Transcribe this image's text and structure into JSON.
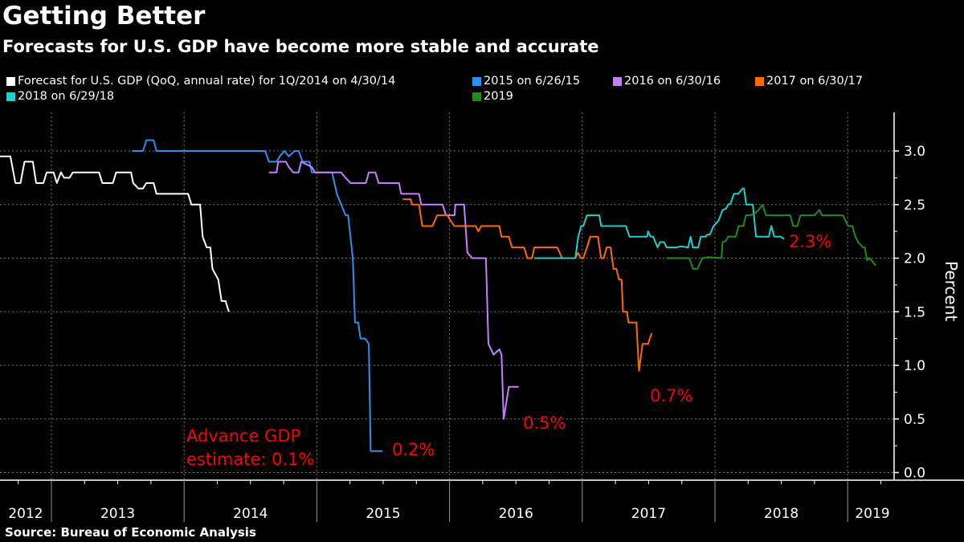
{
  "chart_data": {
    "type": "line",
    "title": "Getting Better",
    "subtitle": "Forecasts for U.S. GDP have become more stable and accurate",
    "ylabel": "Percent",
    "ylim": [
      0,
      3.3
    ],
    "yticks": [
      "0.0",
      "0.5",
      "1.0",
      "1.5",
      "2.0",
      "2.5",
      "3.0"
    ],
    "xticks": [
      "2012",
      "2013",
      "2014",
      "2015",
      "2016",
      "2017",
      "2018",
      "2019"
    ],
    "grid": true,
    "legend_position": "top",
    "source": "Source: Bureau of Economic Analysis",
    "annotations": {
      "advance_line1": "Advance GDP",
      "advance_line2": "estimate: 0.1%",
      "a2015": "0.2%",
      "a2016": "0.5%",
      "a2017": "0.7%",
      "a2018": "2.3%"
    },
    "annotation_color": "#ff0000",
    "series": [
      {
        "name": "Forecast for U.S. GDP (QoQ, annual rate) for 1Q/2014 on 4/30/14",
        "color": "#ffffff",
        "points": [
          [
            "2012-08-10",
            2.95
          ],
          [
            "2012-09-09",
            2.95
          ],
          [
            "2012-09-23",
            2.7
          ],
          [
            "2012-10-07",
            2.7
          ],
          [
            "2012-10-18",
            2.9
          ],
          [
            "2012-11-10",
            2.9
          ],
          [
            "2012-11-19",
            2.7
          ],
          [
            "2012-12-09",
            2.7
          ],
          [
            "2012-12-18",
            2.8
          ],
          [
            "2013-01-07",
            2.8
          ],
          [
            "2013-01-16",
            2.7
          ],
          [
            "2013-01-27",
            2.8
          ],
          [
            "2013-02-05",
            2.75
          ],
          [
            "2013-02-20",
            2.75
          ],
          [
            "2013-03-01",
            2.8
          ],
          [
            "2013-05-12",
            2.8
          ],
          [
            "2013-05-21",
            2.7
          ],
          [
            "2013-06-19",
            2.7
          ],
          [
            "2013-06-28",
            2.8
          ],
          [
            "2013-08-08",
            2.8
          ],
          [
            "2013-08-14",
            2.7
          ],
          [
            "2013-08-28",
            2.65
          ],
          [
            "2013-09-10",
            2.65
          ],
          [
            "2013-09-19",
            2.7
          ],
          [
            "2013-10-09",
            2.7
          ],
          [
            "2013-10-17",
            2.6
          ],
          [
            "2014-01-12",
            2.6
          ],
          [
            "2014-01-21",
            2.5
          ],
          [
            "2014-02-14",
            2.5
          ],
          [
            "2014-02-21",
            2.2
          ],
          [
            "2014-03-04",
            2.1
          ],
          [
            "2014-03-14",
            2.1
          ],
          [
            "2014-03-20",
            1.9
          ],
          [
            "2014-04-05",
            1.8
          ],
          [
            "2014-04-14",
            1.6
          ],
          [
            "2014-04-25",
            1.6
          ],
          [
            "2014-05-04",
            1.5
          ]
        ]
      },
      {
        "name": "2015 on 6/26/15",
        "color": "#2d8ff0",
        "points": [
          [
            "2013-08-11",
            3.0
          ],
          [
            "2013-09-10",
            3.0
          ],
          [
            "2013-09-19",
            3.1
          ],
          [
            "2013-10-09",
            3.1
          ],
          [
            "2013-10-17",
            3.0
          ],
          [
            "2014-08-12",
            3.0
          ],
          [
            "2014-08-22",
            2.9
          ],
          [
            "2014-09-12",
            2.9
          ],
          [
            "2014-09-21",
            2.95
          ],
          [
            "2014-10-04",
            3.0
          ],
          [
            "2014-10-16",
            2.95
          ],
          [
            "2014-11-01",
            3.0
          ],
          [
            "2014-11-12",
            3.0
          ],
          [
            "2014-11-23",
            2.9
          ],
          [
            "2014-12-12",
            2.9
          ],
          [
            "2014-12-18",
            2.8
          ],
          [
            "2015-02-12",
            2.8
          ],
          [
            "2015-02-25",
            2.6
          ],
          [
            "2015-03-09",
            2.5
          ],
          [
            "2015-03-21",
            2.4
          ],
          [
            "2015-03-28",
            2.4
          ],
          [
            "2015-04-10",
            2.0
          ],
          [
            "2015-04-16",
            1.4
          ],
          [
            "2015-04-25",
            1.4
          ],
          [
            "2015-05-01",
            1.25
          ],
          [
            "2015-05-14",
            1.25
          ],
          [
            "2015-05-24",
            1.2
          ],
          [
            "2015-05-29",
            0.2
          ],
          [
            "2015-07-01",
            0.2
          ]
        ]
      },
      {
        "name": "2016 on 6/30/16",
        "color": "#c77dff",
        "points": [
          [
            "2014-08-22",
            2.8
          ],
          [
            "2014-09-12",
            2.8
          ],
          [
            "2014-09-17",
            2.9
          ],
          [
            "2014-10-08",
            2.9
          ],
          [
            "2014-10-16",
            2.85
          ],
          [
            "2014-10-28",
            2.8
          ],
          [
            "2014-11-12",
            2.8
          ],
          [
            "2014-11-19",
            2.9
          ],
          [
            "2014-12-18",
            2.85
          ],
          [
            "2014-12-27",
            2.8
          ],
          [
            "2015-03-09",
            2.8
          ],
          [
            "2015-03-21",
            2.75
          ],
          [
            "2015-04-04",
            2.7
          ],
          [
            "2015-05-16",
            2.7
          ],
          [
            "2015-05-24",
            2.8
          ],
          [
            "2015-06-11",
            2.8
          ],
          [
            "2015-06-20",
            2.7
          ],
          [
            "2015-08-15",
            2.7
          ],
          [
            "2015-08-21",
            2.6
          ],
          [
            "2015-10-09",
            2.6
          ],
          [
            "2015-10-15",
            2.5
          ],
          [
            "2015-12-13",
            2.5
          ],
          [
            "2015-12-22",
            2.4
          ],
          [
            "2016-01-15",
            2.4
          ],
          [
            "2016-01-17",
            2.5
          ],
          [
            "2016-02-10",
            2.5
          ],
          [
            "2016-02-19",
            2.05
          ],
          [
            "2016-03-04",
            2.0
          ],
          [
            "2016-04-10",
            2.0
          ],
          [
            "2016-04-17",
            1.2
          ],
          [
            "2016-05-01",
            1.1
          ],
          [
            "2016-05-17",
            1.15
          ],
          [
            "2016-05-23",
            1.1
          ],
          [
            "2016-05-29",
            0.5
          ],
          [
            "2016-06-12",
            0.8
          ],
          [
            "2016-07-09",
            0.8
          ]
        ]
      },
      {
        "name": "2017 on 6/30/17",
        "color": "#ff6a00",
        "points": [
          [
            "2015-08-25",
            2.55
          ],
          [
            "2015-09-16",
            2.55
          ],
          [
            "2015-09-20",
            2.5
          ],
          [
            "2015-10-09",
            2.5
          ],
          [
            "2015-10-18",
            2.3
          ],
          [
            "2015-11-15",
            2.3
          ],
          [
            "2015-11-28",
            2.4
          ],
          [
            "2015-12-26",
            2.4
          ],
          [
            "2016-01-04",
            2.35
          ],
          [
            "2016-01-14",
            2.3
          ],
          [
            "2016-03-13",
            2.3
          ],
          [
            "2016-03-20",
            2.25
          ],
          [
            "2016-03-28",
            2.3
          ],
          [
            "2016-05-17",
            2.3
          ],
          [
            "2016-05-23",
            2.2
          ],
          [
            "2016-06-12",
            2.2
          ],
          [
            "2016-06-21",
            2.1
          ],
          [
            "2016-07-24",
            2.1
          ],
          [
            "2016-08-02",
            2.0
          ],
          [
            "2016-08-15",
            2.0
          ],
          [
            "2016-08-21",
            2.1
          ],
          [
            "2016-10-23",
            2.1
          ],
          [
            "2016-11-06",
            2.0
          ],
          [
            "2016-12-12",
            2.0
          ],
          [
            "2016-12-19",
            2.05
          ],
          [
            "2016-12-28",
            2.0
          ],
          [
            "2017-01-04",
            2.0
          ],
          [
            "2017-01-14",
            2.1
          ],
          [
            "2017-01-23",
            2.2
          ],
          [
            "2017-02-13",
            2.2
          ],
          [
            "2017-02-22",
            2.0
          ],
          [
            "2017-03-01",
            2.0
          ],
          [
            "2017-03-09",
            2.1
          ],
          [
            "2017-03-20",
            2.1
          ],
          [
            "2017-03-28",
            1.9
          ],
          [
            "2017-04-05",
            1.9
          ],
          [
            "2017-04-12",
            1.8
          ],
          [
            "2017-04-19",
            1.8
          ],
          [
            "2017-04-23",
            1.5
          ],
          [
            "2017-05-04",
            1.5
          ],
          [
            "2017-05-08",
            1.4
          ],
          [
            "2017-05-30",
            1.4
          ],
          [
            "2017-06-06",
            0.95
          ],
          [
            "2017-06-16",
            1.2
          ],
          [
            "2017-07-01",
            1.2
          ],
          [
            "2017-07-11",
            1.3
          ]
        ]
      },
      {
        "name": "2018 on 6/29/18",
        "color": "#1ad1d1",
        "points": [
          [
            "2016-08-21",
            2.0
          ],
          [
            "2016-12-12",
            2.0
          ],
          [
            "2016-12-20",
            2.2
          ],
          [
            "2016-12-28",
            2.3
          ],
          [
            "2017-01-04",
            2.3
          ],
          [
            "2017-01-14",
            2.4
          ],
          [
            "2017-02-17",
            2.4
          ],
          [
            "2017-02-22",
            2.3
          ],
          [
            "2017-05-01",
            2.3
          ],
          [
            "2017-05-11",
            2.2
          ],
          [
            "2017-06-28",
            2.2
          ],
          [
            "2017-07-01",
            2.25
          ],
          [
            "2017-07-08",
            2.2
          ],
          [
            "2017-07-15",
            2.2
          ],
          [
            "2017-07-27",
            2.1
          ],
          [
            "2017-08-03",
            2.15
          ],
          [
            "2017-08-14",
            2.15
          ],
          [
            "2017-08-21",
            2.1
          ],
          [
            "2017-09-19",
            2.1
          ],
          [
            "2017-09-28",
            2.11
          ],
          [
            "2017-10-19",
            2.1
          ],
          [
            "2017-10-26",
            2.2
          ],
          [
            "2017-11-01",
            2.1
          ],
          [
            "2017-11-16",
            2.1
          ],
          [
            "2017-11-23",
            2.2
          ],
          [
            "2017-12-06",
            2.2
          ],
          [
            "2017-12-11",
            2.22
          ],
          [
            "2017-12-18",
            2.22
          ],
          [
            "2017-12-28",
            2.3
          ],
          [
            "2018-01-11",
            2.35
          ],
          [
            "2018-01-22",
            2.45
          ],
          [
            "2018-01-31",
            2.46
          ],
          [
            "2018-02-06",
            2.5
          ],
          [
            "2018-02-13",
            2.51
          ],
          [
            "2018-02-22",
            2.6
          ],
          [
            "2018-03-06",
            2.6
          ],
          [
            "2018-03-18",
            2.65
          ],
          [
            "2018-03-22",
            2.65
          ],
          [
            "2018-03-28",
            2.5
          ],
          [
            "2018-04-15",
            2.5
          ],
          [
            "2018-04-24",
            2.2
          ],
          [
            "2018-05-29",
            2.2
          ],
          [
            "2018-06-05",
            2.3
          ],
          [
            "2018-06-13",
            2.2
          ],
          [
            "2018-07-01",
            2.2
          ],
          [
            "2018-07-10",
            2.18
          ]
        ]
      },
      {
        "name": "2019",
        "color": "#1e8c1e",
        "points": [
          [
            "2017-08-21",
            2.0
          ],
          [
            "2017-10-22",
            2.0
          ],
          [
            "2017-11-02",
            1.9
          ],
          [
            "2017-11-14",
            1.9
          ],
          [
            "2017-11-27",
            2.0
          ],
          [
            "2017-12-14",
            2.01
          ],
          [
            "2018-01-19",
            2.0
          ],
          [
            "2018-01-22",
            2.15
          ],
          [
            "2018-01-31",
            2.16
          ],
          [
            "2018-02-06",
            2.2
          ],
          [
            "2018-02-27",
            2.2
          ],
          [
            "2018-03-07",
            2.3
          ],
          [
            "2018-03-20",
            2.3
          ],
          [
            "2018-03-27",
            2.4
          ],
          [
            "2018-04-08",
            2.4
          ],
          [
            "2018-04-22",
            2.42
          ],
          [
            "2018-05-01",
            2.45
          ],
          [
            "2018-05-12",
            2.5
          ],
          [
            "2018-05-21",
            2.4
          ],
          [
            "2018-07-27",
            2.4
          ],
          [
            "2018-08-04",
            2.3
          ],
          [
            "2018-08-16",
            2.3
          ],
          [
            "2018-08-24",
            2.4
          ],
          [
            "2018-10-02",
            2.4
          ],
          [
            "2018-10-15",
            2.45
          ],
          [
            "2018-10-23",
            2.4
          ],
          [
            "2018-12-19",
            2.4
          ],
          [
            "2019-01-02",
            2.3
          ],
          [
            "2019-01-14",
            2.3
          ],
          [
            "2019-01-22",
            2.2
          ],
          [
            "2019-01-30",
            2.15
          ],
          [
            "2019-02-12",
            2.1
          ],
          [
            "2019-02-17",
            2.1
          ],
          [
            "2019-02-23",
            1.98
          ],
          [
            "2019-03-03",
            2.0
          ],
          [
            "2019-03-19",
            1.93
          ]
        ]
      }
    ]
  }
}
